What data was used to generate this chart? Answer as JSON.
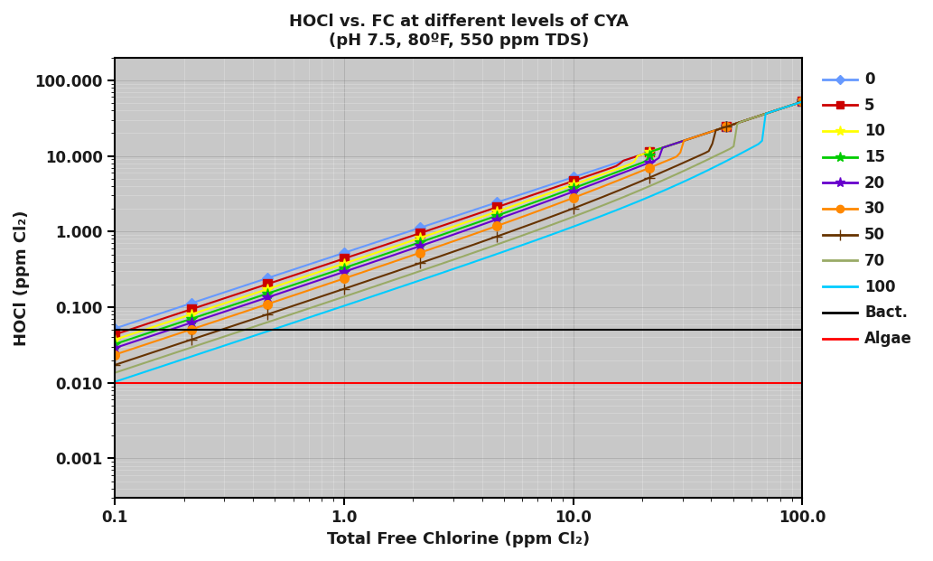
{
  "title": "HOCl vs. FC at different levels of CYA",
  "subtitle": "(pH 7.5, 80ºF, 550 ppm TDS)",
  "xlabel": "Total Free Chlorine (ppm Cl₂)",
  "ylabel": "HOCl (ppm Cl₂)",
  "xlim": [
    0.1,
    100.0
  ],
  "ylim": [
    0.0001,
    200.0
  ],
  "yticks": [
    0.001,
    0.01,
    0.1,
    1.0,
    10.0,
    100.0
  ],
  "yticklabels": [
    "0.001",
    "0.010",
    "0.100",
    "1.000",
    "10.000",
    "100.000"
  ],
  "xticks": [
    0.1,
    1.0,
    10.0,
    100.0
  ],
  "xticklabels": [
    "0.1",
    "1.0",
    "10.0",
    "100.0"
  ],
  "bact_level": 0.05,
  "algae_level": 0.01,
  "background_color": "#c8c8c8",
  "series": [
    {
      "cya": 0,
      "color": "#6699ff",
      "marker": "D",
      "markersize": 6,
      "label": "0"
    },
    {
      "cya": 5,
      "color": "#cc0000",
      "marker": "s",
      "markersize": 7,
      "label": "5"
    },
    {
      "cya": 10,
      "color": "#ffff00",
      "marker": "*",
      "markersize": 9,
      "label": "10"
    },
    {
      "cya": 15,
      "color": "#00cc00",
      "marker": "*",
      "markersize": 9,
      "label": "15"
    },
    {
      "cya": 20,
      "color": "#6600cc",
      "marker": "*",
      "markersize": 9,
      "label": "20"
    },
    {
      "cya": 30,
      "color": "#ff8800",
      "marker": "o",
      "markersize": 7,
      "label": "30"
    },
    {
      "cya": 50,
      "color": "#663300",
      "marker": "+",
      "markersize": 9,
      "label": "50"
    },
    {
      "cya": 70,
      "color": "#99aa66",
      "marker": "None",
      "markersize": 6,
      "label": "70"
    },
    {
      "cya": 100,
      "color": "#00ccff",
      "marker": "None",
      "markersize": 6,
      "label": "100"
    }
  ]
}
